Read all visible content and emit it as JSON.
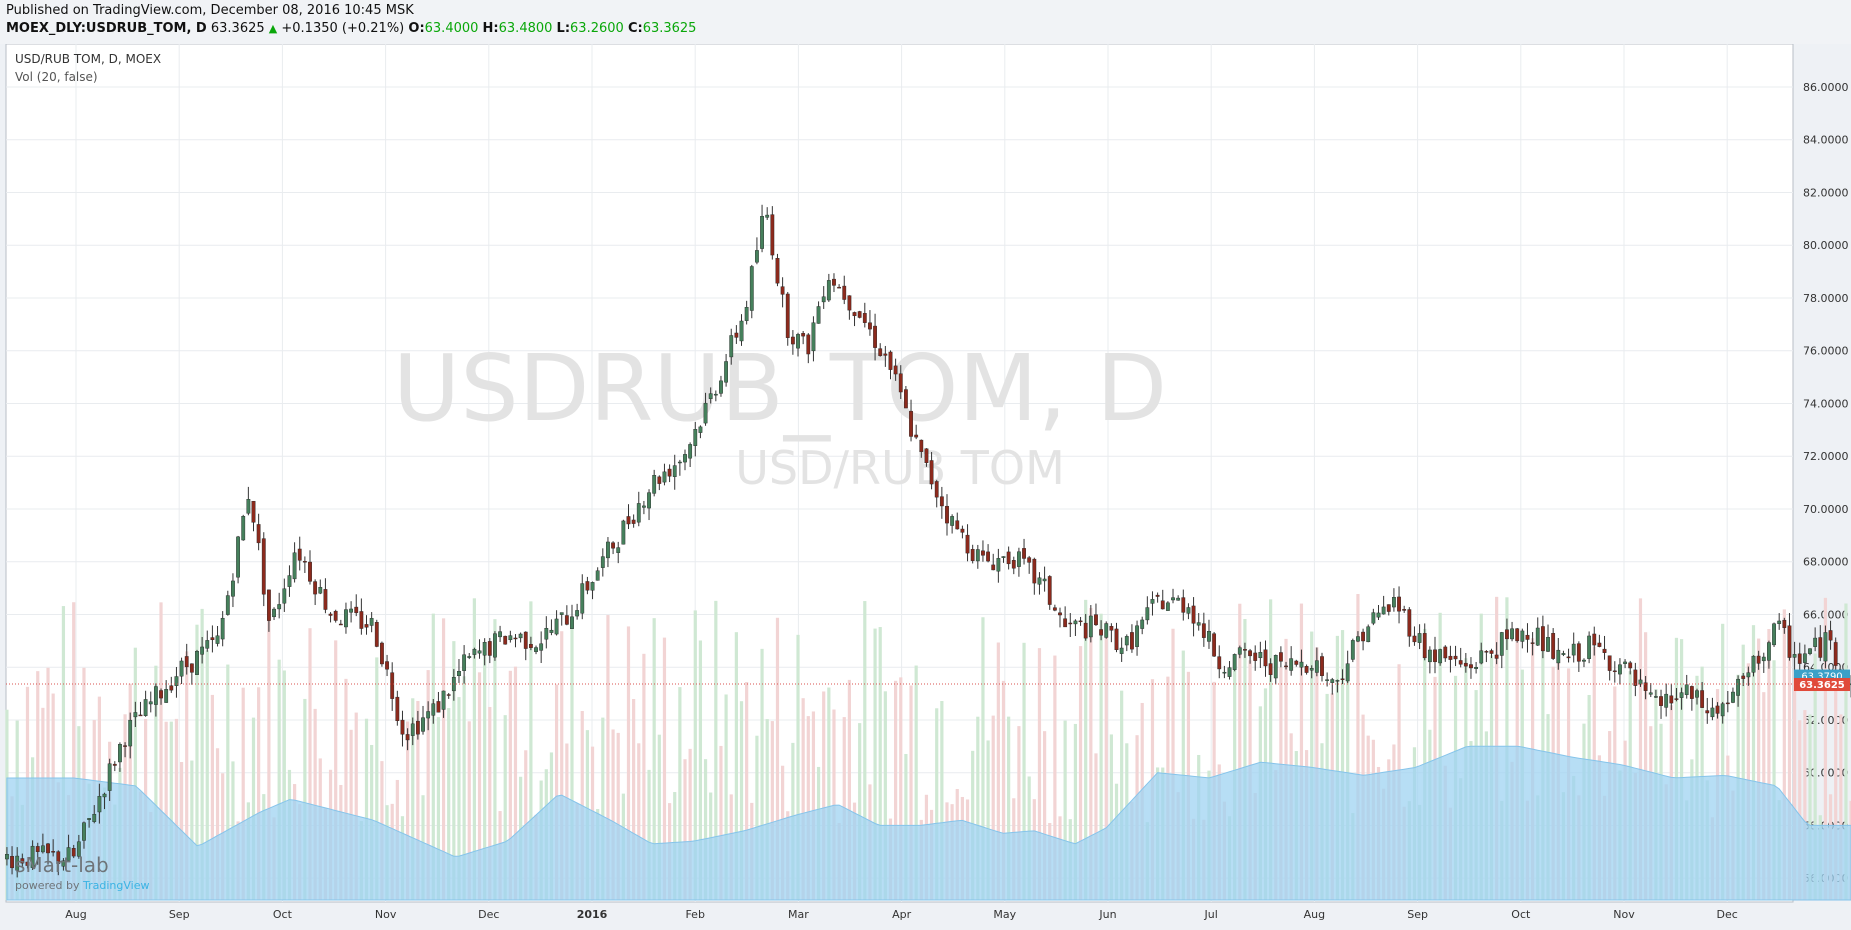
{
  "publish_line": "Published on TradingView.com, December 08, 2016 10:45 MSK",
  "quote": {
    "symbol": "MOEX_DLY:USDRUB_TOM, D",
    "last": "63.3625",
    "change": "+0.1350 (+0.21%)",
    "open_label": "O:",
    "open": "63.4000",
    "high_label": "H:",
    "high": "63.4800",
    "low_label": "L:",
    "low": "63.2600",
    "close_label": "C:",
    "close": "63.3625"
  },
  "pane": {
    "title": "USD/RUB TOM, D, MOEX",
    "volume_label": "Vol (20, false)",
    "watermark_main": "USDRUB_TOM, D",
    "watermark_sub": "USD/RUB TOM"
  },
  "branding": {
    "name": "sMart-lab",
    "powered_prefix": "powered by ",
    "powered_name": "TradingView"
  },
  "colors": {
    "up": "#46805c",
    "down": "#8c2a1d",
    "wick": "#333333",
    "vol_up": "#cfe8d3",
    "vol_down": "#f2d4d4",
    "vol_ma": "#9fd3f2",
    "price_line": "#d9534f",
    "badge_ask": "#3aa0c8",
    "badge_last": "#e04a3a"
  },
  "chart_data": {
    "type": "candlestick",
    "title": "USD/RUB TOM, D, MOEX",
    "x_ticks": [
      "Aug",
      "Sep",
      "Oct",
      "Nov",
      "Dec",
      "2016",
      "Feb",
      "Mar",
      "Apr",
      "May",
      "Jun",
      "Jul",
      "Aug",
      "Sep",
      "Oct",
      "Nov",
      "Dec"
    ],
    "y_ticks": [
      "56.0000",
      "58.0000",
      "60.0000",
      "62.0000",
      "64.0000",
      "66.0000",
      "68.0000",
      "70.0000",
      "72.0000",
      "74.0000",
      "76.0000",
      "78.0000",
      "80.0000",
      "82.0000",
      "84.0000",
      "86.0000"
    ],
    "ylim": [
      55.0,
      87.0
    ],
    "grid": true,
    "last_price_badge": "63.3625",
    "second_badge": "63.3790",
    "price_anchors": [
      {
        "m": 0.0,
        "v": 56.8
      },
      {
        "m": 0.5,
        "v": 61.5
      },
      {
        "m": 1.0,
        "v": 63.8
      },
      {
        "m": 1.4,
        "v": 65.0
      },
      {
        "m": 1.7,
        "v": 70.8
      },
      {
        "m": 1.9,
        "v": 65.5
      },
      {
        "m": 2.15,
        "v": 68.6
      },
      {
        "m": 2.5,
        "v": 66.0
      },
      {
        "m": 2.9,
        "v": 65.6
      },
      {
        "m": 3.2,
        "v": 61.5
      },
      {
        "m": 3.5,
        "v": 62.4
      },
      {
        "m": 3.8,
        "v": 64.2
      },
      {
        "m": 4.2,
        "v": 65.2
      },
      {
        "m": 4.5,
        "v": 65.0
      },
      {
        "m": 4.8,
        "v": 66.0
      },
      {
        "m": 5.2,
        "v": 68.5
      },
      {
        "m": 5.6,
        "v": 71.0
      },
      {
        "m": 5.9,
        "v": 72.0
      },
      {
        "m": 6.2,
        "v": 74.5
      },
      {
        "m": 6.5,
        "v": 77.5
      },
      {
        "m": 6.7,
        "v": 81.5
      },
      {
        "m": 6.9,
        "v": 77.0
      },
      {
        "m": 7.1,
        "v": 76.0
      },
      {
        "m": 7.3,
        "v": 79.0
      },
      {
        "m": 7.6,
        "v": 77.5
      },
      {
        "m": 7.9,
        "v": 75.5
      },
      {
        "m": 8.2,
        "v": 72.0
      },
      {
        "m": 8.5,
        "v": 69.5
      },
      {
        "m": 8.8,
        "v": 68.0
      },
      {
        "m": 9.1,
        "v": 68.2
      },
      {
        "m": 9.4,
        "v": 67.0
      },
      {
        "m": 9.6,
        "v": 65.5
      },
      {
        "m": 9.9,
        "v": 65.5
      },
      {
        "m": 10.2,
        "v": 64.8
      },
      {
        "m": 10.5,
        "v": 66.5
      },
      {
        "m": 10.8,
        "v": 66.4
      },
      {
        "m": 11.1,
        "v": 64.2
      },
      {
        "m": 11.4,
        "v": 64.4
      },
      {
        "m": 11.7,
        "v": 64.0
      },
      {
        "m": 12.0,
        "v": 64.3
      },
      {
        "m": 12.2,
        "v": 63.3
      },
      {
        "m": 12.5,
        "v": 65.5
      },
      {
        "m": 12.8,
        "v": 66.5
      },
      {
        "m": 13.1,
        "v": 64.6
      },
      {
        "m": 13.5,
        "v": 64.0
      },
      {
        "m": 13.8,
        "v": 64.8
      },
      {
        "m": 14.1,
        "v": 65.5
      },
      {
        "m": 14.4,
        "v": 64.2
      },
      {
        "m": 14.7,
        "v": 64.8
      },
      {
        "m": 15.0,
        "v": 64.0
      },
      {
        "m": 15.3,
        "v": 62.5
      },
      {
        "m": 15.6,
        "v": 63.0
      },
      {
        "m": 15.9,
        "v": 62.2
      },
      {
        "m": 16.2,
        "v": 63.5
      },
      {
        "m": 16.5,
        "v": 65.5
      },
      {
        "m": 16.7,
        "v": 64.3
      },
      {
        "m": 17.0,
        "v": 65.0
      },
      {
        "m": 17.2,
        "v": 63.4
      }
    ],
    "volume_ma_anchors": [
      {
        "m": 0.0,
        "v": 59.8
      },
      {
        "m": 0.6,
        "v": 59.5
      },
      {
        "m": 1.2,
        "v": 57.2
      },
      {
        "m": 1.8,
        "v": 58.5
      },
      {
        "m": 2.1,
        "v": 59.0
      },
      {
        "m": 2.5,
        "v": 58.6
      },
      {
        "m": 2.9,
        "v": 58.2
      },
      {
        "m": 3.3,
        "v": 57.5
      },
      {
        "m": 3.7,
        "v": 56.8
      },
      {
        "m": 4.2,
        "v": 57.4
      },
      {
        "m": 4.7,
        "v": 59.2
      },
      {
        "m": 5.2,
        "v": 58.2
      },
      {
        "m": 5.6,
        "v": 57.3
      },
      {
        "m": 6.0,
        "v": 57.4
      },
      {
        "m": 6.5,
        "v": 57.8
      },
      {
        "m": 7.0,
        "v": 58.4
      },
      {
        "m": 7.4,
        "v": 58.8
      },
      {
        "m": 7.8,
        "v": 58.0
      },
      {
        "m": 8.2,
        "v": 58.0
      },
      {
        "m": 8.6,
        "v": 58.2
      },
      {
        "m": 9.0,
        "v": 57.7
      },
      {
        "m": 9.3,
        "v": 57.8
      },
      {
        "m": 9.7,
        "v": 57.3
      },
      {
        "m": 10.0,
        "v": 57.9
      },
      {
        "m": 10.5,
        "v": 60.0
      },
      {
        "m": 11.0,
        "v": 59.8
      },
      {
        "m": 11.5,
        "v": 60.4
      },
      {
        "m": 12.0,
        "v": 60.2
      },
      {
        "m": 12.5,
        "v": 59.9
      },
      {
        "m": 13.0,
        "v": 60.2
      },
      {
        "m": 13.5,
        "v": 61.0
      },
      {
        "m": 14.0,
        "v": 61.0
      },
      {
        "m": 14.5,
        "v": 60.6
      },
      {
        "m": 15.0,
        "v": 60.3
      },
      {
        "m": 15.5,
        "v": 59.8
      },
      {
        "m": 16.0,
        "v": 59.9
      },
      {
        "m": 16.5,
        "v": 59.5
      },
      {
        "m": 16.8,
        "v": 58.0
      },
      {
        "m": 17.2,
        "v": 58.0
      }
    ],
    "volume_scale": [
      55.0,
      62.5
    ]
  }
}
